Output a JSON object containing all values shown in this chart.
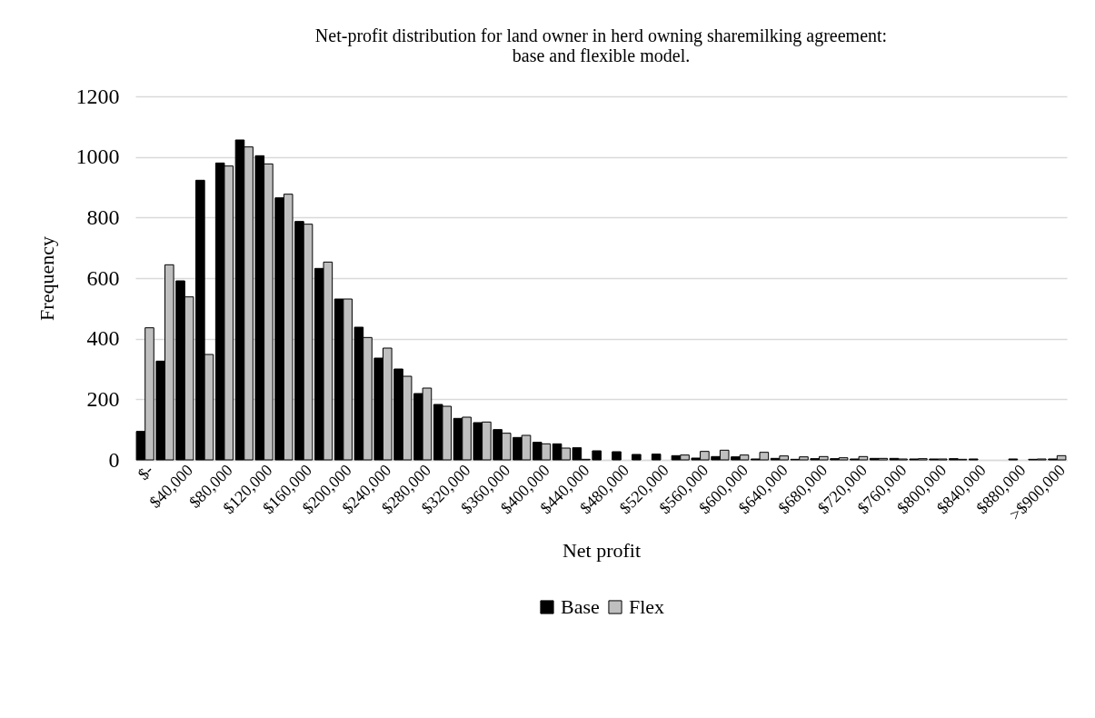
{
  "chart_data": {
    "type": "bar",
    "title": "Net-profit distribution for land owner in herd owning sharemilking agreement: base and flexible model.",
    "xlabel": "Net profit",
    "ylabel": "Frequency",
    "categories": [
      "$-",
      null,
      "$40,000",
      null,
      "$80,000",
      null,
      "$120,000",
      null,
      "$160,000",
      null,
      "$200,000",
      null,
      "$240,000",
      null,
      "$280,000",
      null,
      "$320,000",
      null,
      "$360,000",
      null,
      "$400,000",
      null,
      "$440,000",
      null,
      "$480,000",
      null,
      "$520,000",
      null,
      "$560,000",
      null,
      "$600,000",
      null,
      "$640,000",
      null,
      "$680,000",
      null,
      "$720,000",
      null,
      "$760,000",
      null,
      "$800,000",
      null,
      "$840,000",
      null,
      "$880,000",
      null,
      ">$900,000"
    ],
    "series": [
      {
        "name": "Base",
        "color": "#000000",
        "values": [
          94,
          326,
          591,
          923,
          980,
          1056,
          1004,
          865,
          787,
          632,
          531,
          438,
          336,
          300,
          219,
          183,
          137,
          123,
          100,
          74,
          58,
          53,
          40,
          30,
          27,
          18,
          19,
          14,
          6,
          11,
          10,
          3,
          5,
          2,
          4,
          4,
          3,
          5,
          5,
          3,
          3,
          4,
          3,
          0,
          3,
          2,
          3
        ]
      },
      {
        "name": "Flex",
        "color": "#bfbfbf",
        "values": [
          436,
          644,
          538,
          348,
          970,
          1033,
          977,
          877,
          778,
          653,
          531,
          404,
          369,
          276,
          237,
          177,
          141,
          125,
          88,
          81,
          53,
          39,
          2,
          0,
          0,
          0,
          0,
          16,
          28,
          32,
          16,
          25,
          13,
          10,
          11,
          7,
          11,
          5,
          3,
          4,
          3,
          2,
          0,
          0,
          0,
          3,
          14
        ]
      }
    ],
    "ylim": [
      0,
      1200
    ],
    "yticks": [
      0,
      200,
      400,
      600,
      800,
      1000,
      1200
    ],
    "grid": "y",
    "legend": "bottom"
  }
}
